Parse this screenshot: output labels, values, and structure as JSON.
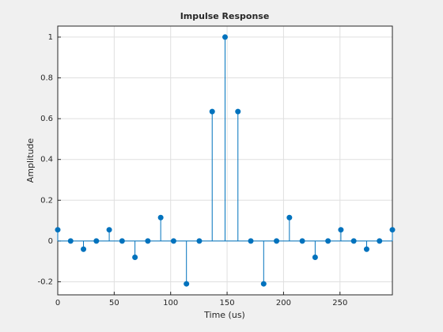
{
  "chart_data": {
    "type": "stem",
    "title": "Impulse Response",
    "x_label": "Time (us)",
    "y_label": "Amplitude",
    "x": [
      0,
      11.4,
      22.8,
      34.2,
      45.6,
      57,
      68.4,
      79.8,
      91.2,
      102.6,
      114,
      125.4,
      136.8,
      148.2,
      159.6,
      171,
      182.4,
      193.8,
      205.2,
      216.6,
      228,
      239.4,
      250.8,
      262.2,
      273.6,
      285,
      296.4
    ],
    "values": [
      0.055,
      0,
      -0.04,
      0,
      0.055,
      0,
      -0.08,
      0,
      0.115,
      0,
      -0.21,
      0,
      0.635,
      1,
      0.635,
      0,
      -0.21,
      0,
      0.115,
      0,
      -0.08,
      0,
      0.055,
      0,
      -0.04,
      0,
      0.055
    ],
    "color": "#0072bd",
    "xlim": [
      0,
      296.4
    ],
    "xticks": [
      0,
      50,
      100,
      150,
      200,
      250
    ],
    "ylim": [
      -0.264,
      1.054
    ],
    "yticks": [
      -0.2,
      0,
      0.2,
      0.4,
      0.6,
      0.8,
      1
    ],
    "grid": true
  }
}
